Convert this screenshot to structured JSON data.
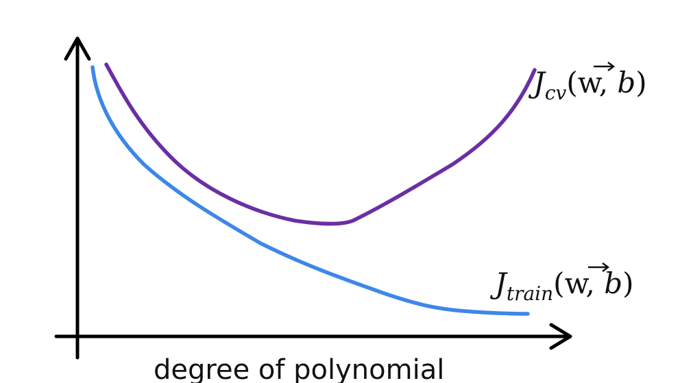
{
  "diagram": {
    "x_axis_caption": "degree of polynomial",
    "curves": [
      {
        "id": "cv",
        "label_main": "J",
        "label_sub": "cv",
        "label_args": "(w, b)",
        "label_vector_var": "w",
        "label_scalar_var": "b",
        "color": "#6a2fa3"
      },
      {
        "id": "train",
        "label_main": "J",
        "label_sub": "train",
        "label_args": "(w, b)",
        "label_vector_var": "w",
        "label_scalar_var": "b",
        "color": "#3d87e8"
      }
    ],
    "axis_color": "#000000"
  }
}
